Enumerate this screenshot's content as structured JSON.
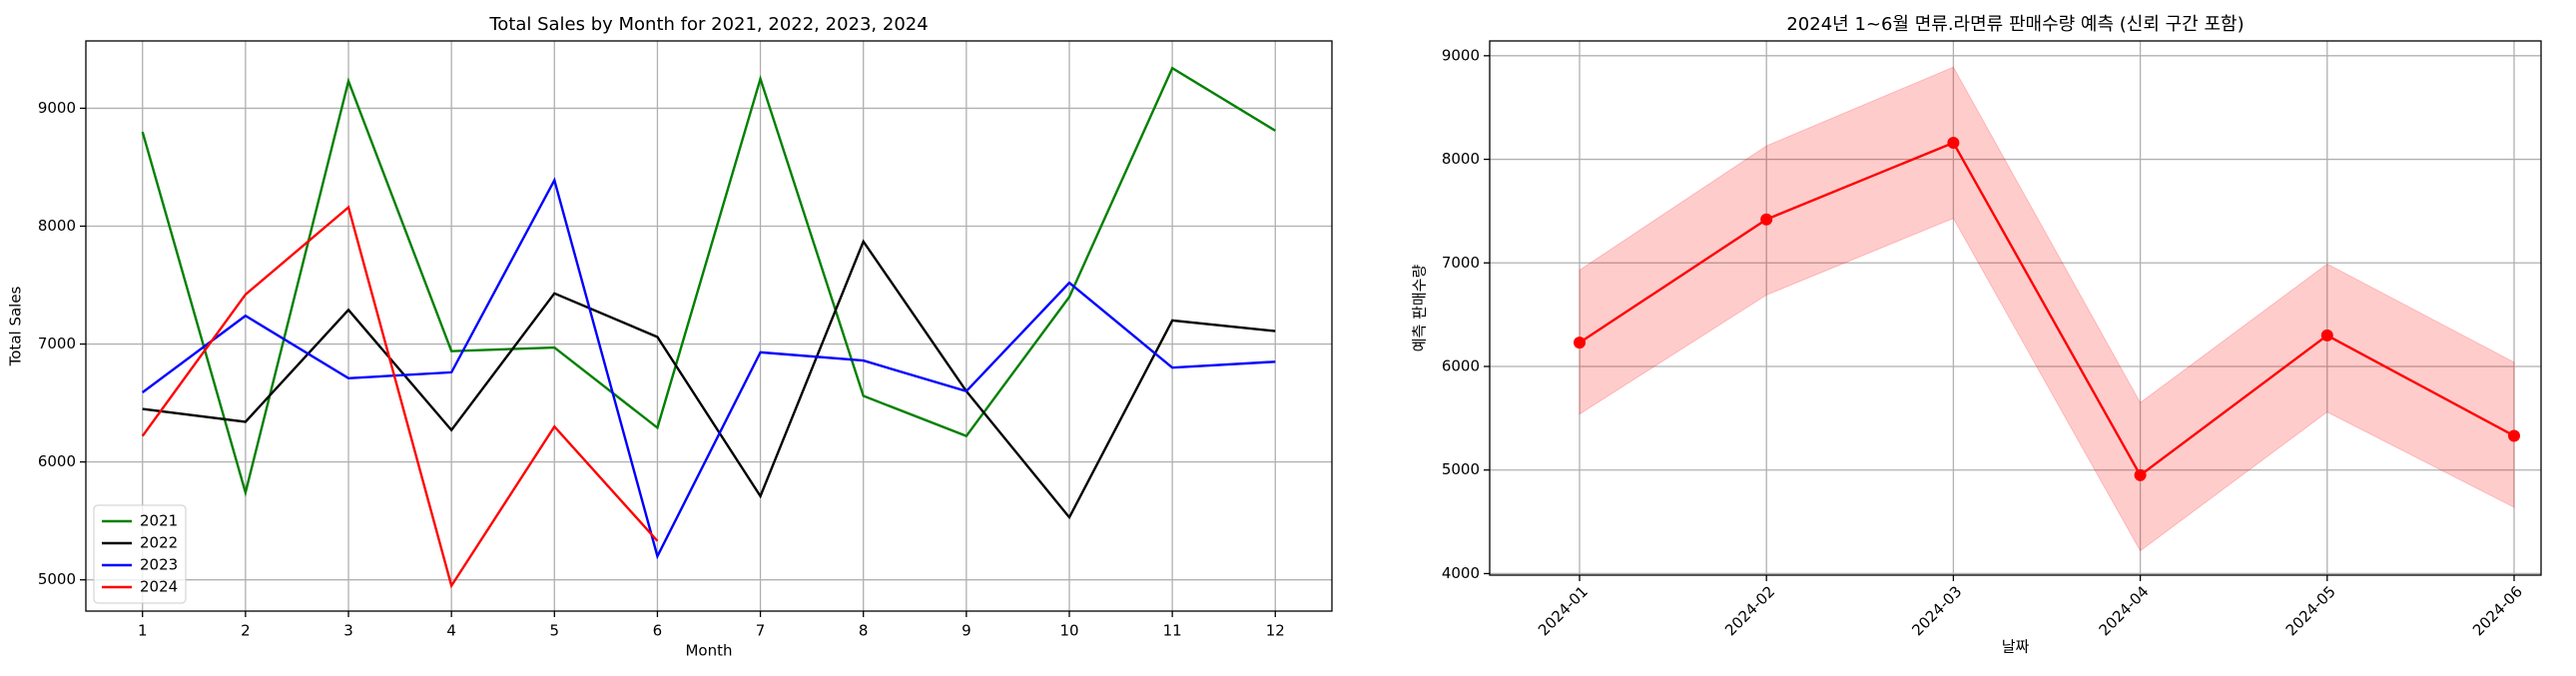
{
  "chart_data": [
    {
      "type": "line",
      "title": "Total Sales by Month for 2021, 2022, 2023, 2024",
      "x_label": "Month",
      "y_label": "Total Sales",
      "x": [
        1,
        2,
        3,
        4,
        5,
        6,
        7,
        8,
        9,
        10,
        11,
        12
      ],
      "series": [
        {
          "name": "2021",
          "color": "#008000",
          "values": [
            8800,
            5740,
            9230,
            6940,
            6970,
            6290,
            9250,
            6560,
            6220,
            7400,
            9340,
            8810
          ]
        },
        {
          "name": "2022",
          "color": "#000000",
          "values": [
            6450,
            6340,
            7290,
            6270,
            7430,
            7060,
            5710,
            7870,
            6600,
            5530,
            7200,
            7110
          ]
        },
        {
          "name": "2023",
          "color": "#0000ff",
          "values": [
            6590,
            7240,
            6710,
            6760,
            8390,
            5200,
            6930,
            6860,
            6600,
            7520,
            6800,
            6850
          ]
        },
        {
          "name": "2024",
          "color": "#ff0000",
          "values": [
            6220,
            7420,
            8160,
            4950,
            6300,
            5330,
            null,
            null,
            null,
            null,
            null,
            null
          ]
        }
      ],
      "xlim": [
        0.45,
        12.55
      ],
      "xticks": [
        1,
        2,
        3,
        4,
        5,
        6,
        7,
        8,
        9,
        10,
        11,
        12
      ],
      "ylim": [
        4735,
        9571
      ],
      "yticks": [
        5000,
        6000,
        7000,
        8000,
        9000
      ],
      "grid": true,
      "legend": "lower left"
    },
    {
      "type": "band_line",
      "title": "2024년 1~6월 면류.라면류 판매수량 예측 (신뢰 구간 포함)",
      "x_label": "날짜",
      "y_label": "예측 판매수량",
      "categories": [
        "2024-01",
        "2024-02",
        "2024-03",
        "2024-04",
        "2024-05",
        "2024-06"
      ],
      "series": [
        {
          "color": "#ff0000",
          "values": [
            6230,
            7420,
            8160,
            4950,
            6300,
            5330
          ],
          "lower": [
            5540,
            6690,
            7430,
            4220,
            5560,
            4640
          ],
          "upper": [
            6930,
            8130,
            8890,
            5650,
            6990,
            6040
          ]
        }
      ],
      "ylim": [
        3985,
        9143
      ],
      "yticks": [
        4000,
        5000,
        6000,
        7000,
        8000,
        9000
      ],
      "grid": true
    }
  ]
}
